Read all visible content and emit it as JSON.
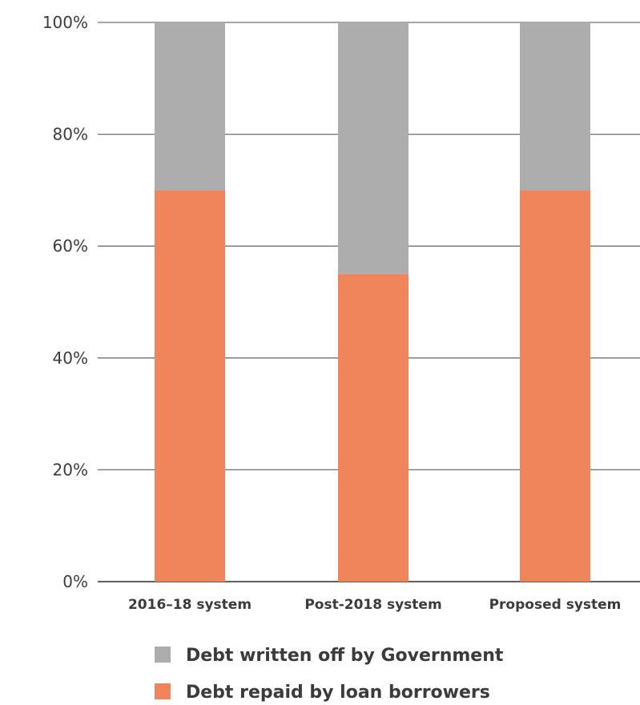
{
  "chart_data": {
    "type": "bar",
    "stacked": true,
    "categories": [
      "2016–18 system",
      "Post-2018 system",
      "Proposed system"
    ],
    "series": [
      {
        "name": "Debt repaid by loan borrowers",
        "values": [
          70,
          55,
          70
        ],
        "color": "#f0845a"
      },
      {
        "name": "Debt written off by Government",
        "values": [
          30,
          45,
          30
        ],
        "color": "#adadae"
      }
    ],
    "ylim": [
      0,
      100
    ],
    "yticks": [
      0,
      20,
      40,
      60,
      80,
      100
    ],
    "ytick_labels": [
      "0%",
      "20%",
      "40%",
      "60%",
      "80%",
      "100%"
    ],
    "grid": true,
    "legend": {
      "placement": "bottom",
      "order": [
        "Debt written off by Government",
        "Debt repaid by loan borrowers"
      ]
    }
  }
}
